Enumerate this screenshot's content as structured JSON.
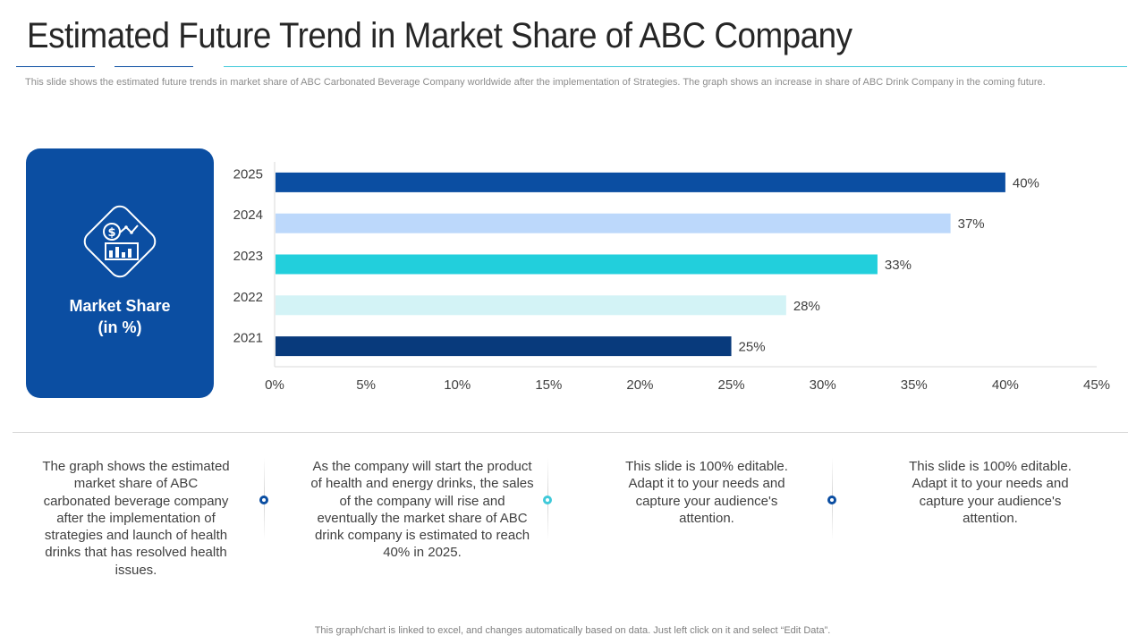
{
  "header": {
    "title": "Estimated Future Trend in Market Share of ABC Company",
    "subtitle": "This slide shows the estimated future trends in market share of ABC Carbonated Beverage Company worldwide after the implementation of Strategies. The graph shows an increase in share of ABC Drink Company in the coming future."
  },
  "side_card": {
    "icon": "market-share-icon",
    "label": "Market Share\n(in %)",
    "color": "#0b4ea2"
  },
  "chart_data": {
    "type": "bar",
    "orientation": "horizontal",
    "title": "",
    "xlabel": "",
    "ylabel": "",
    "categories": [
      "2025",
      "2024",
      "2023",
      "2022",
      "2021"
    ],
    "values": [
      40,
      37,
      33,
      28,
      25
    ],
    "value_labels": [
      "40%",
      "37%",
      "33%",
      "28%",
      "25%"
    ],
    "bar_colors": [
      "#0b4ea2",
      "#bcd8fb",
      "#22cfdc",
      "#d3f3f6",
      "#083a7c"
    ],
    "xlim": [
      0,
      45
    ],
    "xticks": [
      0,
      5,
      10,
      15,
      20,
      25,
      30,
      35,
      40,
      45
    ],
    "xtick_labels": [
      "0%",
      "5%",
      "10%",
      "15%",
      "20%",
      "25%",
      "30%",
      "35%",
      "40%",
      "45%"
    ],
    "grid": false
  },
  "notes": [
    "The graph shows the estimated market share of ABC carbonated beverage company after the implementation of strategies and launch of health drinks that has resolved health issues.",
    "As the company will start the product of health and energy drinks, the sales of the company will rise and eventually the market share of ABC drink company is estimated to reach 40% in 2025.",
    "This slide is 100% editable. Adapt it to your needs and capture your audience's attention.",
    "This slide is 100% editable. Adapt it to your needs and capture your audience's attention."
  ],
  "dot_colors": [
    "#0b4ea2",
    "#3fc9d9",
    "#0b4ea2"
  ],
  "footer": "This graph/chart is linked to excel, and changes automatically based on data. Just left click on it and select “Edit Data”."
}
